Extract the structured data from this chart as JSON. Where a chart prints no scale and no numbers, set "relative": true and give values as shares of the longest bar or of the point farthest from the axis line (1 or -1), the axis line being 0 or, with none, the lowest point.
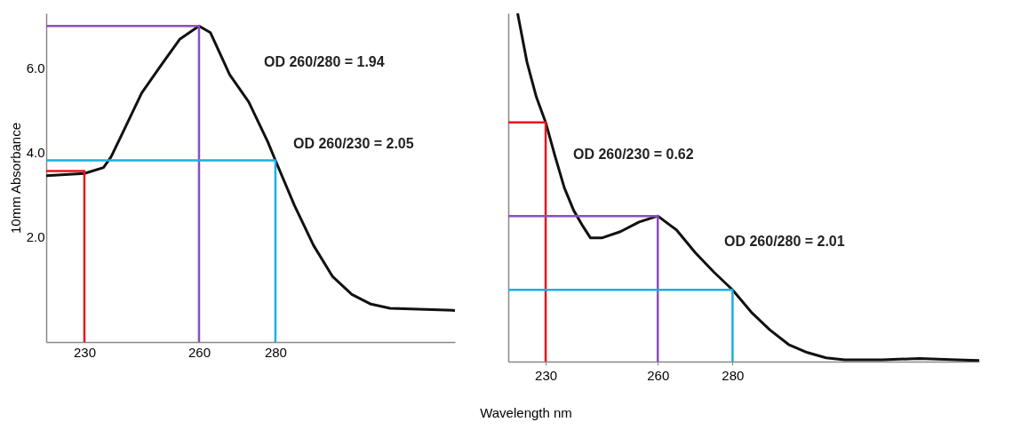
{
  "chart_data": [
    {
      "type": "line",
      "ylabel": "10mm Absorbance",
      "xlabel": "Wavelength nm",
      "xlim": [
        220,
        327
      ],
      "xticks": [
        230,
        260,
        280
      ],
      "ylim": [
        -0.5,
        7.3
      ],
      "yticks": [
        {
          "value": 2,
          "label": "2.0"
        },
        {
          "value": 4,
          "label": "4.0"
        },
        {
          "value": 6,
          "label": "6.0"
        }
      ],
      "grid": false,
      "line_style": "solid",
      "marker": "none",
      "annotations": [
        "OD 260/280 = 1.94",
        "OD 260/230 = 2.05"
      ],
      "series": [
        {
          "color": "#111111",
          "x": [
            220,
            230,
            235,
            237,
            240,
            245,
            250,
            255,
            260,
            263,
            268,
            273,
            278,
            280,
            285,
            290,
            295,
            300,
            305,
            310,
            327
          ],
          "values": [
            3.45,
            3.5,
            3.64,
            3.9,
            4.46,
            5.41,
            6.06,
            6.69,
            7.0,
            6.84,
            5.85,
            5.2,
            4.25,
            3.81,
            2.74,
            1.79,
            1.05,
            0.63,
            0.4,
            0.3,
            0.25
          ]
        },
        {
          "color": "#e8141c",
          "x": [
            220,
            230,
            230
          ],
          "values": [
            3.56,
            3.56,
            -0.5
          ]
        },
        {
          "color": "#8a4fbf",
          "x": [
            220,
            260,
            260
          ],
          "values": [
            7.0,
            7.0,
            -0.5
          ]
        },
        {
          "color": "#1aafe6",
          "x": [
            220,
            280,
            280
          ],
          "values": [
            3.81,
            3.81,
            -0.5
          ]
        }
      ]
    },
    {
      "type": "line",
      "relative": true,
      "xlim": [
        220,
        346
      ],
      "xticks": [
        230,
        260,
        280
      ],
      "grid": false,
      "line_style": "solid",
      "marker": "none",
      "annotations": [
        "OD 260/230 = 0.62",
        "OD 260/280 = 2.01"
      ],
      "series": [
        {
          "color": "#111111",
          "x": [
            222.5,
            225,
            227.5,
            230,
            232.5,
            235,
            237.5,
            240,
            242,
            245,
            250,
            255,
            260,
            265,
            270,
            275,
            280,
            285,
            290,
            295,
            300,
            305,
            310,
            320,
            330,
            340,
            346
          ],
          "values": [
            1.0,
            0.86,
            0.76,
            0.687,
            0.59,
            0.499,
            0.434,
            0.388,
            0.355,
            0.355,
            0.373,
            0.401,
            0.418,
            0.378,
            0.313,
            0.257,
            0.206,
            0.142,
            0.091,
            0.049,
            0.026,
            0.011,
            0.005,
            0.005,
            0.009,
            0.005,
            0.003
          ]
        },
        {
          "color": "#e8141c",
          "x": [
            220,
            230,
            230
          ],
          "values": [
            0.687,
            0.687,
            0
          ]
        },
        {
          "color": "#8a4fbf",
          "x": [
            220,
            260,
            260
          ],
          "values": [
            0.418,
            0.418,
            0
          ]
        },
        {
          "color": "#1aafe6",
          "x": [
            220,
            280,
            280
          ],
          "values": [
            0.206,
            0.206,
            0
          ]
        }
      ]
    }
  ]
}
